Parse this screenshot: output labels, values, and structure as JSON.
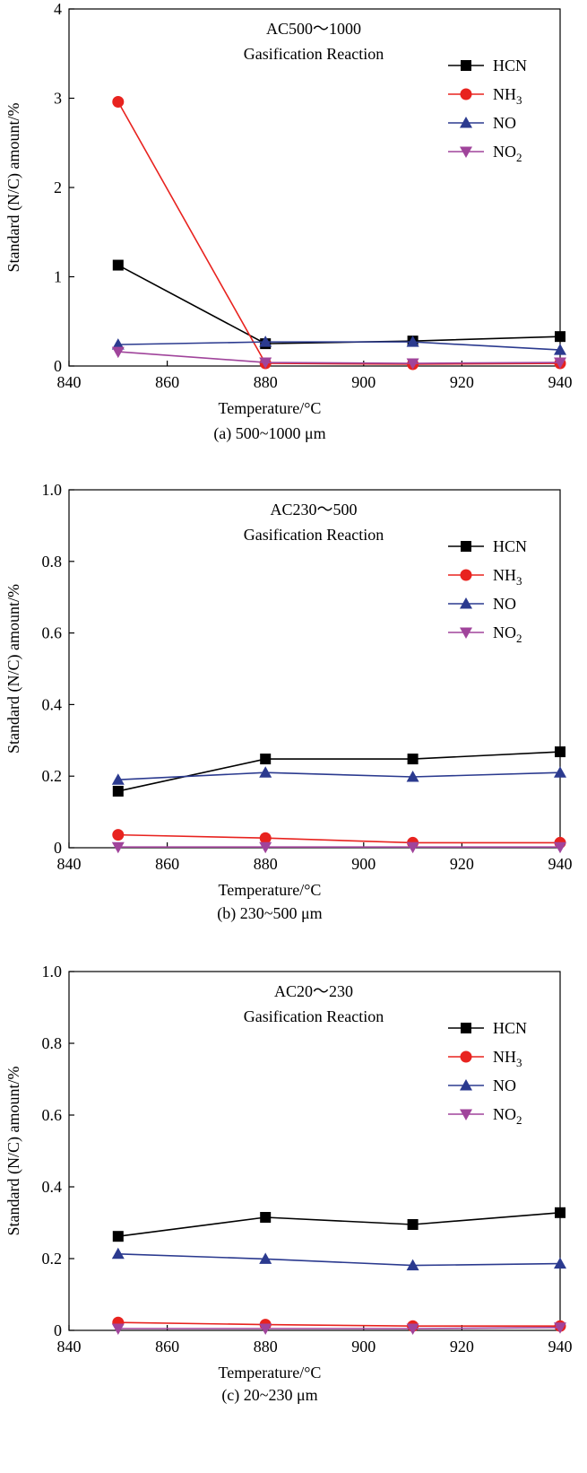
{
  "colors": {
    "HCN": "#000000",
    "NH3": "#e8231f",
    "NO": "#2b3a8f",
    "NO2": "#a0449b",
    "axis": "#000000"
  },
  "chart_data": [
    {
      "type": "line",
      "title": "AC500～1000",
      "subtitle": "Gasification Reaction",
      "caption": "(a) 500~1000 μm",
      "xlabel": "Temperature/°C",
      "ylabel": "Standard (N/C) amount/%",
      "x": [
        850,
        880,
        910,
        940
      ],
      "xlim": [
        840,
        940
      ],
      "ylim": [
        0,
        4
      ],
      "xticks": [
        "840",
        "860",
        "880",
        "900",
        "920",
        "940"
      ],
      "yticks": [
        "0",
        "1",
        "2",
        "3",
        "4"
      ],
      "legend_position": "top-right",
      "series": [
        {
          "name": "HCN",
          "label_main": "HCN",
          "label_sub": "",
          "marker": "square",
          "values": [
            1.13,
            0.25,
            0.28,
            0.33
          ]
        },
        {
          "name": "NH3",
          "label_main": "NH",
          "label_sub": "3",
          "marker": "circle",
          "values": [
            2.96,
            0.03,
            0.02,
            0.03
          ]
        },
        {
          "name": "NO",
          "label_main": "NO",
          "label_sub": "",
          "marker": "triangle-up",
          "values": [
            0.24,
            0.27,
            0.27,
            0.18
          ]
        },
        {
          "name": "NO2",
          "label_main": "NO",
          "label_sub": "2",
          "marker": "triangle-down",
          "values": [
            0.16,
            0.04,
            0.03,
            0.04
          ]
        }
      ]
    },
    {
      "type": "line",
      "title": "AC230～500",
      "subtitle": "Gasification Reaction",
      "caption": "(b) 230~500 μm",
      "xlabel": "Temperature/°C",
      "ylabel": "Standard (N/C) amount/%",
      "x": [
        850,
        880,
        910,
        940
      ],
      "xlim": [
        840,
        940
      ],
      "ylim": [
        0,
        1
      ],
      "xticks": [
        "840",
        "860",
        "880",
        "900",
        "920",
        "940"
      ],
      "yticks": [
        "0",
        "0.2",
        "0.4",
        "0.6",
        "0.8",
        "1.0"
      ],
      "legend_position": "top-right",
      "series": [
        {
          "name": "HCN",
          "label_main": "HCN",
          "label_sub": "",
          "marker": "square",
          "values": [
            0.158,
            0.248,
            0.248,
            0.268
          ]
        },
        {
          "name": "NH3",
          "label_main": "NH",
          "label_sub": "3",
          "marker": "circle",
          "values": [
            0.036,
            0.027,
            0.014,
            0.014
          ]
        },
        {
          "name": "NO",
          "label_main": "NO",
          "label_sub": "",
          "marker": "triangle-up",
          "values": [
            0.19,
            0.21,
            0.198,
            0.21
          ]
        },
        {
          "name": "NO2",
          "label_main": "NO",
          "label_sub": "2",
          "marker": "triangle-down",
          "values": [
            0.002,
            0.002,
            0.002,
            0.002
          ]
        }
      ]
    },
    {
      "type": "line",
      "title": "AC20～230",
      "subtitle": "Gasification Reaction",
      "caption": "(c) 20~230 μm",
      "xlabel": "Temperature/°C",
      "ylabel": "Standard (N/C) amount/%",
      "x": [
        850,
        880,
        910,
        940
      ],
      "xlim": [
        840,
        940
      ],
      "ylim": [
        0,
        1
      ],
      "xticks": [
        "840",
        "860",
        "880",
        "900",
        "920",
        "940"
      ],
      "yticks": [
        "0",
        "0.2",
        "0.4",
        "0.6",
        "0.8",
        "1.0"
      ],
      "legend_position": "top-right",
      "series": [
        {
          "name": "HCN",
          "label_main": "HCN",
          "label_sub": "",
          "marker": "square",
          "values": [
            0.262,
            0.315,
            0.295,
            0.328
          ]
        },
        {
          "name": "NH3",
          "label_main": "NH",
          "label_sub": "3",
          "marker": "circle",
          "values": [
            0.022,
            0.016,
            0.012,
            0.012
          ]
        },
        {
          "name": "NO",
          "label_main": "NO",
          "label_sub": "",
          "marker": "triangle-up",
          "values": [
            0.213,
            0.199,
            0.181,
            0.186
          ]
        },
        {
          "name": "NO2",
          "label_main": "NO",
          "label_sub": "2",
          "marker": "triangle-down",
          "values": [
            0.005,
            0.005,
            0.005,
            0.008
          ]
        }
      ]
    }
  ]
}
